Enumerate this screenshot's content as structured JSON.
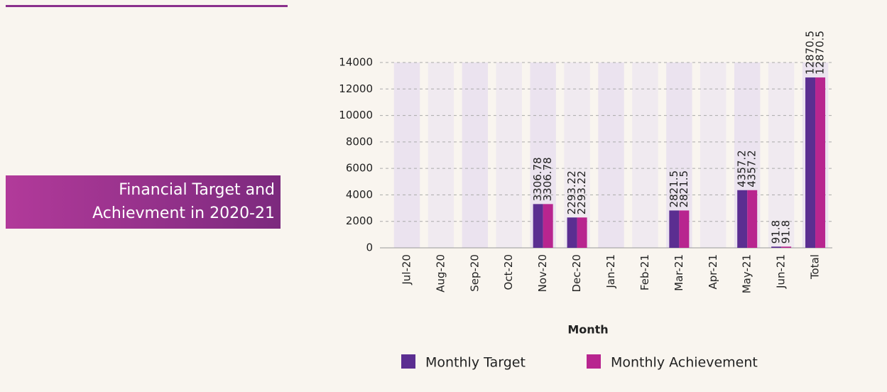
{
  "chart_data": {
    "type": "bar",
    "title": [
      "Financial Target and",
      "Achievment in 2020-21"
    ],
    "x_label": "Month",
    "categories": [
      "Jul-20",
      "Aug-20",
      "Sep-20",
      "Oct-20",
      "Nov-20",
      "Dec-20",
      "Jan-21",
      "Feb-21",
      "Mar-21",
      "Apr-21",
      "May-21",
      "Jun-21",
      "Total"
    ],
    "series": [
      {
        "name": "Monthly Target",
        "color": "#5b2e91",
        "values": [
          0,
          0,
          0,
          0,
          3306.78,
          2293.22,
          0,
          0,
          2821.5,
          0,
          4357.2,
          91.8,
          12870.5
        ]
      },
      {
        "name": "Monthly Achievement",
        "color": "#b8258f",
        "values": [
          0,
          0,
          0,
          0,
          3306.78,
          2293.22,
          0,
          0,
          2821.5,
          0,
          4357.2,
          91.8,
          12870.5
        ]
      }
    ],
    "ylim": [
      0,
      14000
    ],
    "yticks": [
      0,
      2000,
      4000,
      6000,
      8000,
      10000,
      12000,
      14000
    ],
    "grid": true,
    "legend": "bottom"
  }
}
